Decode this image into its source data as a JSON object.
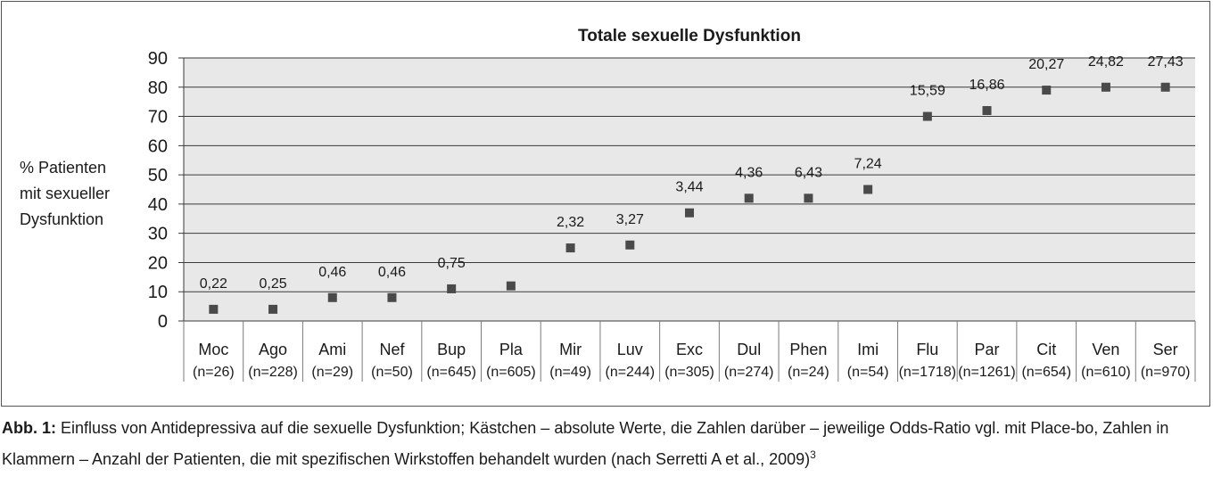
{
  "chart_data": {
    "type": "scatter",
    "title": "Totale sexuelle Dysfunktion",
    "ylabel_lines": [
      "% Patienten",
      "mit sexueller",
      "Dysfunktion"
    ],
    "ylim": [
      0,
      90
    ],
    "yticks": [
      0,
      10,
      20,
      30,
      40,
      50,
      60,
      70,
      80,
      90
    ],
    "grid": true,
    "categories": [
      "Moc",
      "Ago",
      "Ami",
      "Nef",
      "Bup",
      "Pla",
      "Mir",
      "Luv",
      "Exc",
      "Dul",
      "Phen",
      "Imi",
      "Flu",
      "Par",
      "Cit",
      "Ven",
      "Ser"
    ],
    "counts": [
      "(n=26)",
      "(n=228)",
      "(n=29)",
      "(n=50)",
      "(n=645)",
      "(n=605)",
      "(n=49)",
      "(n=244)",
      "(n=305)",
      "(n=274)",
      "(n=24)",
      "(n=54)",
      "(n=1718)",
      "(n=1261)",
      "(n=654)",
      "(n=610)",
      "(n=970)"
    ],
    "values": [
      4,
      4,
      8,
      8,
      11,
      12,
      25,
      26,
      37,
      42,
      42,
      45,
      70,
      72,
      79,
      80,
      80
    ],
    "odds_ratios": [
      "0,22",
      "0,25",
      "0,46",
      "0,46",
      "0,75",
      "",
      "2,32",
      "3,27",
      "3,44",
      "4,36",
      "6,43",
      "7,24",
      "15,59",
      "16,86",
      "20,27",
      "24,82",
      "27,43"
    ],
    "marker_color": "#4a4a4a"
  },
  "caption": {
    "label": "Abb. 1:",
    "text": " Einfluss von Antidepressiva auf die sexuelle Dysfunktion; Kästchen – absolute Werte, die Zahlen darüber – jeweilige Odds-Ratio vgl. mit Place-bo, Zahlen in Klammern – Anzahl der Patienten, die mit spezifischen Wirkstoffen behandelt wurden (nach Serretti A et al., 2009)",
    "ref": "3"
  }
}
